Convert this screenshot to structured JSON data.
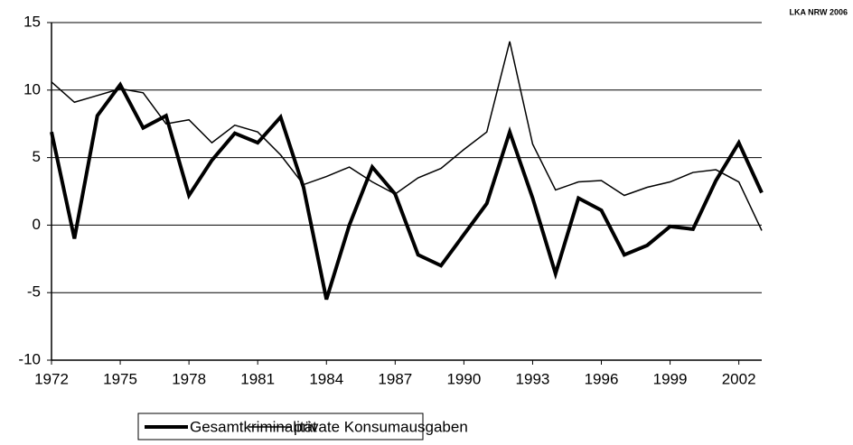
{
  "chart_data": {
    "type": "line",
    "annotation": "LKA NRW 2006",
    "x": [
      1972,
      1973,
      1974,
      1975,
      1976,
      1977,
      1978,
      1979,
      1980,
      1981,
      1982,
      1983,
      1984,
      1985,
      1986,
      1987,
      1988,
      1989,
      1990,
      1991,
      1992,
      1993,
      1994,
      1995,
      1996,
      1997,
      1998,
      1999,
      2000,
      2001,
      2002,
      2003
    ],
    "series": [
      {
        "name": "Gesamtkriminalität",
        "color": "#000000",
        "width": 4,
        "values": [
          6.9,
          -1.0,
          8.1,
          10.4,
          7.2,
          8.1,
          2.2,
          4.8,
          6.8,
          6.1,
          8.0,
          2.8,
          -5.5,
          0.0,
          4.3,
          2.3,
          -2.2,
          -3.0,
          -0.7,
          1.6,
          6.9,
          2.0,
          -3.6,
          2.0,
          1.1,
          -2.2,
          -1.5,
          -0.1,
          -0.3,
          3.3,
          6.1,
          2.4
        ]
      },
      {
        "name": "private Konsumausgaben",
        "color": "#000000",
        "width": 1.5,
        "values": [
          10.6,
          9.1,
          9.6,
          10.1,
          9.8,
          7.5,
          7.8,
          6.1,
          7.4,
          6.9,
          5.2,
          3.0,
          3.6,
          4.3,
          3.2,
          2.3,
          3.5,
          4.2,
          5.6,
          6.9,
          13.6,
          6.0,
          2.6,
          3.2,
          3.3,
          2.2,
          2.8,
          3.2,
          3.9,
          4.1,
          3.2,
          -0.4
        ]
      }
    ],
    "xlim": [
      1972,
      2003
    ],
    "xticks": [
      1972,
      1975,
      1978,
      1981,
      1984,
      1987,
      1990,
      1993,
      1996,
      1999,
      2002
    ],
    "ylim": [
      -10,
      15
    ],
    "yticks": [
      -10,
      -5,
      0,
      5,
      10,
      15
    ],
    "grid": true
  }
}
